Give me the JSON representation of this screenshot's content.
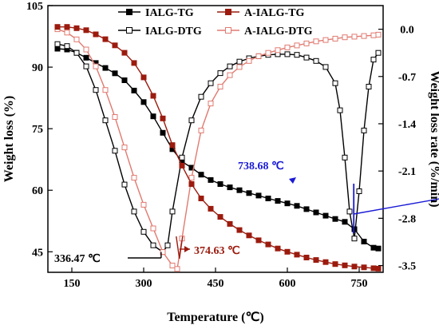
{
  "chart_data": {
    "type": "line",
    "xlabel": "Temperature (℃)",
    "ylabel_left": "Weight loss (%)",
    "ylabel_right": "Weight loss rate (%/min)",
    "xlim": [
      100,
      800
    ],
    "ylim_left": [
      40,
      105
    ],
    "ylim_right": [
      -3.6,
      0.35
    ],
    "x_ticks": [
      150,
      300,
      450,
      600,
      750
    ],
    "y_ticks_left": [
      45,
      60,
      75,
      90,
      105
    ],
    "y_ticks_right": [
      0.0,
      -0.7,
      -1.4,
      -2.1,
      -2.8,
      -3.5
    ],
    "grid": false,
    "legend_position": "top",
    "series": [
      {
        "name": "IALG-TG",
        "axis": "left",
        "color": "#000000",
        "marker": "square-filled",
        "x": [
          120,
          140,
          160,
          180,
          200,
          220,
          240,
          260,
          280,
          300,
          320,
          340,
          360,
          380,
          400,
          420,
          440,
          460,
          480,
          500,
          520,
          540,
          560,
          580,
          600,
          620,
          640,
          660,
          680,
          700,
          720,
          740,
          760,
          780,
          790
        ],
        "y": [
          94.5,
          94.3,
          93.5,
          92.3,
          91.0,
          89.8,
          88.5,
          86.8,
          84.3,
          81.5,
          78.0,
          74.0,
          70.0,
          67.0,
          65.5,
          63.8,
          62.5,
          61.5,
          60.7,
          60.0,
          59.3,
          58.7,
          58.0,
          57.4,
          56.8,
          56.2,
          55.4,
          54.6,
          53.8,
          53.0,
          52.3,
          50.5,
          47.5,
          46.0,
          45.8
        ]
      },
      {
        "name": "A-IALG-TG",
        "axis": "left",
        "color": "#9b1b0e",
        "marker": "square-filled",
        "x": [
          120,
          140,
          160,
          180,
          200,
          220,
          240,
          260,
          280,
          300,
          320,
          340,
          360,
          380,
          400,
          420,
          440,
          460,
          480,
          500,
          520,
          540,
          560,
          580,
          600,
          620,
          640,
          660,
          680,
          700,
          720,
          740,
          760,
          780,
          790
        ],
        "y": [
          99.8,
          99.8,
          99.5,
          99.0,
          98.0,
          96.8,
          95.3,
          93.5,
          91.0,
          87.5,
          83.0,
          77.5,
          71.0,
          66.0,
          61.5,
          58.0,
          55.5,
          53.5,
          51.8,
          50.3,
          49.0,
          47.8,
          46.8,
          45.8,
          45.0,
          44.3,
          43.6,
          43.0,
          42.5,
          42.0,
          41.7,
          41.4,
          41.2,
          41.0,
          40.9
        ]
      },
      {
        "name": "IALG-DTG",
        "axis": "right",
        "color": "#000000",
        "marker": "square-open",
        "x": [
          120,
          140,
          160,
          180,
          200,
          220,
          240,
          260,
          280,
          300,
          320,
          340,
          350,
          360,
          380,
          400,
          420,
          440,
          460,
          480,
          500,
          520,
          540,
          560,
          580,
          600,
          620,
          640,
          660,
          680,
          700,
          710,
          720,
          730,
          740,
          750,
          760,
          770,
          780,
          790
        ],
        "y": [
          -0.22,
          -0.25,
          -0.35,
          -0.55,
          -0.9,
          -1.35,
          -1.8,
          -2.3,
          -2.7,
          -3.0,
          -3.2,
          -3.3,
          -3.2,
          -2.7,
          -1.9,
          -1.35,
          -1.0,
          -0.8,
          -0.65,
          -0.55,
          -0.48,
          -0.43,
          -0.4,
          -0.38,
          -0.37,
          -0.37,
          -0.38,
          -0.42,
          -0.47,
          -0.56,
          -0.8,
          -1.2,
          -1.9,
          -2.7,
          -3.1,
          -2.4,
          -1.5,
          -0.85,
          -0.45,
          -0.35
        ]
      },
      {
        "name": "A-IALG-DTG",
        "axis": "right",
        "color": "#e07a70",
        "marker": "square-open",
        "x": [
          120,
          140,
          160,
          180,
          200,
          220,
          240,
          260,
          280,
          300,
          320,
          340,
          360,
          370,
          380,
          400,
          420,
          440,
          460,
          480,
          500,
          520,
          540,
          560,
          580,
          600,
          620,
          640,
          660,
          680,
          700,
          720,
          740,
          760,
          780,
          790
        ],
        "y": [
          0.0,
          -0.05,
          -0.15,
          -0.3,
          -0.55,
          -0.9,
          -1.3,
          -1.75,
          -2.2,
          -2.6,
          -2.95,
          -3.3,
          -3.5,
          -3.55,
          -3.1,
          -2.2,
          -1.5,
          -1.1,
          -0.85,
          -0.68,
          -0.56,
          -0.47,
          -0.4,
          -0.35,
          -0.31,
          -0.27,
          -0.24,
          -0.21,
          -0.18,
          -0.16,
          -0.14,
          -0.12,
          -0.11,
          -0.1,
          -0.09,
          -0.08
        ]
      }
    ],
    "annotations": [
      {
        "text": "336.47  ℃",
        "x": 336.47,
        "color": "#000000"
      },
      {
        "text": "374.63  ℃",
        "x": 374.63,
        "color": "#9b1b0e"
      },
      {
        "text": "738.68  ℃",
        "x": 738.68,
        "color": "#1a1ad6"
      }
    ]
  }
}
